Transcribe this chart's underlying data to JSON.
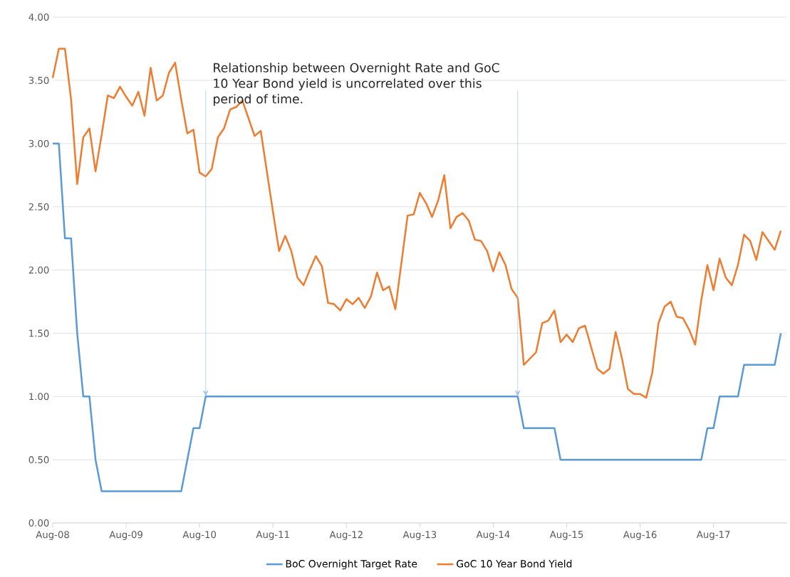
{
  "chart_data": {
    "type": "line",
    "annotations": [
      {
        "text": "Relationship between Overnight Rate and GoC 10 Year Bond yield is uncorrelated over this period of time.",
        "x": "2010-09",
        "y": 1.0
      }
    ],
    "series": [
      {
        "name": "BoC Overnight Target Rate",
        "color": "#5b9bd5",
        "x": [
          "2008-08",
          "2008-09",
          "2008-10",
          "2008-11",
          "2008-12",
          "2009-01",
          "2009-02",
          "2009-03",
          "2009-04",
          "2010-05",
          "2010-06",
          "2010-07",
          "2010-08",
          "2010-09",
          "2014-12",
          "2015-01",
          "2015-06",
          "2015-07",
          "2017-06",
          "2017-07",
          "2017-08",
          "2017-09",
          "2017-12",
          "2018-01",
          "2018-06",
          "2018-07"
        ],
        "values": [
          3.0,
          3.0,
          2.25,
          2.25,
          1.5,
          1.0,
          1.0,
          0.5,
          0.25,
          0.25,
          0.5,
          0.75,
          0.75,
          1.0,
          1.0,
          0.75,
          0.75,
          0.5,
          0.5,
          0.75,
          0.75,
          1.0,
          1.0,
          1.25,
          1.25,
          1.5
        ]
      },
      {
        "name": "GoC 10 Year Bond Yield",
        "color": "#ed7d31",
        "x": [
          "2008-08",
          "2008-09",
          "2008-10",
          "2008-11",
          "2008-12",
          "2009-01",
          "2009-02",
          "2009-03",
          "2009-04",
          "2009-05",
          "2009-06",
          "2009-07",
          "2009-08",
          "2009-09",
          "2009-10",
          "2009-11",
          "2009-12",
          "2010-01",
          "2010-02",
          "2010-03",
          "2010-04",
          "2010-05",
          "2010-06",
          "2010-07",
          "2010-08",
          "2010-09",
          "2010-10",
          "2010-11",
          "2010-12",
          "2011-01",
          "2011-02",
          "2011-03",
          "2011-04",
          "2011-05",
          "2011-06",
          "2011-07",
          "2011-08",
          "2011-09",
          "2011-10",
          "2011-11",
          "2011-12",
          "2012-01",
          "2012-02",
          "2012-03",
          "2012-04",
          "2012-05",
          "2012-06",
          "2012-07",
          "2012-08",
          "2012-09",
          "2012-10",
          "2012-11",
          "2012-12",
          "2013-01",
          "2013-02",
          "2013-03",
          "2013-04",
          "2013-05",
          "2013-06",
          "2013-07",
          "2013-08",
          "2013-09",
          "2013-10",
          "2013-11",
          "2013-12",
          "2014-01",
          "2014-02",
          "2014-03",
          "2014-04",
          "2014-05",
          "2014-06",
          "2014-07",
          "2014-08",
          "2014-09",
          "2014-10",
          "2014-11",
          "2014-12",
          "2015-01",
          "2015-02",
          "2015-03",
          "2015-04",
          "2015-05",
          "2015-06",
          "2015-07",
          "2015-08",
          "2015-09",
          "2015-10",
          "2015-11",
          "2015-12",
          "2016-01",
          "2016-02",
          "2016-03",
          "2016-04",
          "2016-05",
          "2016-06",
          "2016-07",
          "2016-08",
          "2016-09",
          "2016-10",
          "2016-11",
          "2016-12",
          "2017-01",
          "2017-02",
          "2017-03",
          "2017-04",
          "2017-05",
          "2017-06",
          "2017-07",
          "2017-08",
          "2017-09",
          "2017-10",
          "2017-11",
          "2017-12",
          "2018-01",
          "2018-02",
          "2018-03",
          "2018-04",
          "2018-05",
          "2018-06",
          "2018-07"
        ],
        "values": [
          3.52,
          3.75,
          3.75,
          3.35,
          2.68,
          3.05,
          3.12,
          2.78,
          3.07,
          3.38,
          3.36,
          3.45,
          3.37,
          3.3,
          3.41,
          3.22,
          3.6,
          3.34,
          3.38,
          3.56,
          3.64,
          3.35,
          3.08,
          3.11,
          2.77,
          2.74,
          2.8,
          3.05,
          3.12,
          3.27,
          3.29,
          3.34,
          3.2,
          3.06,
          3.1,
          2.78,
          2.46,
          2.15,
          2.27,
          2.15,
          1.94,
          1.88,
          2.0,
          2.11,
          2.03,
          1.74,
          1.73,
          1.68,
          1.77,
          1.73,
          1.78,
          1.7,
          1.79,
          1.98,
          1.84,
          1.87,
          1.69,
          2.06,
          2.43,
          2.44,
          2.61,
          2.53,
          2.42,
          2.55,
          2.75,
          2.33,
          2.42,
          2.45,
          2.39,
          2.24,
          2.23,
          2.15,
          1.99,
          2.14,
          2.04,
          1.85,
          1.78,
          1.25,
          1.3,
          1.35,
          1.58,
          1.6,
          1.68,
          1.43,
          1.49,
          1.43,
          1.54,
          1.56,
          1.39,
          1.22,
          1.18,
          1.22,
          1.51,
          1.31,
          1.06,
          1.02,
          1.02,
          0.99,
          1.19,
          1.58,
          1.71,
          1.75,
          1.63,
          1.62,
          1.53,
          1.41,
          1.76,
          2.04,
          1.84,
          2.09,
          1.94,
          1.88,
          2.04,
          2.28,
          2.23,
          2.08,
          2.3,
          2.23,
          2.16,
          2.31
        ]
      }
    ],
    "xlim": [
      "2008-08",
      "2018-08"
    ],
    "xticks": [
      {
        "value": "2008-08",
        "label": "Aug-08"
      },
      {
        "value": "2009-08",
        "label": "Aug-09"
      },
      {
        "value": "2010-08",
        "label": "Aug-10"
      },
      {
        "value": "2011-08",
        "label": "Aug-11"
      },
      {
        "value": "2012-08",
        "label": "Aug-12"
      },
      {
        "value": "2013-08",
        "label": "Aug-13"
      },
      {
        "value": "2014-08",
        "label": "Aug-14"
      },
      {
        "value": "2015-08",
        "label": "Aug-15"
      },
      {
        "value": "2016-08",
        "label": "Aug-16"
      },
      {
        "value": "2017-08",
        "label": "Aug-17"
      }
    ],
    "ylim": [
      0,
      4
    ],
    "yticks": [
      {
        "value": 0,
        "label": "0.00"
      },
      {
        "value": 0.5,
        "label": "0.50"
      },
      {
        "value": 1,
        "label": "1.00"
      },
      {
        "value": 1.5,
        "label": "1.50"
      },
      {
        "value": 2,
        "label": "2.00"
      },
      {
        "value": 2.5,
        "label": "2.50"
      },
      {
        "value": 3,
        "label": "3.00"
      },
      {
        "value": 3.5,
        "label": "3.50"
      },
      {
        "value": 4,
        "label": "4.00"
      }
    ],
    "grid": "y",
    "legend": "bottom",
    "marker": "none",
    "line_style": "solid"
  }
}
